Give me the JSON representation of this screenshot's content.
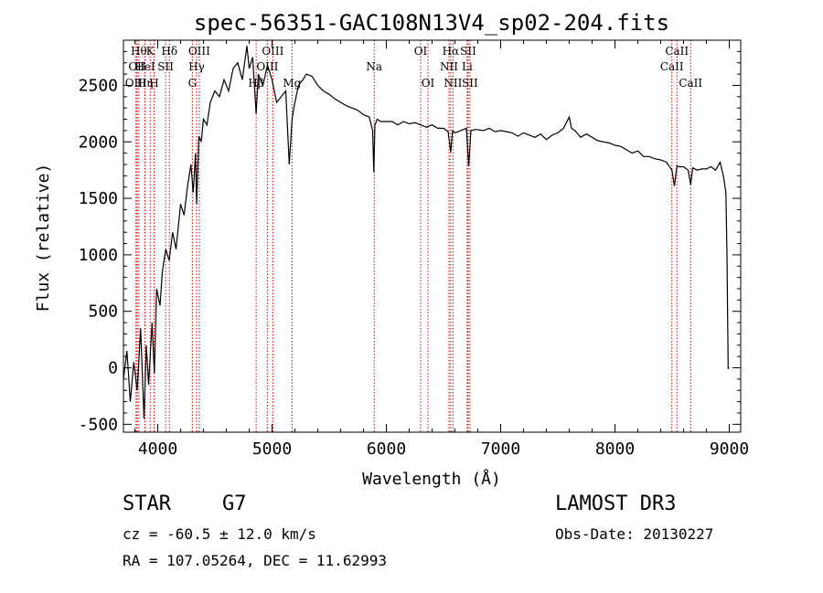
{
  "chart_data": {
    "type": "line",
    "title": "spec-56351-GAC108N13V4_sp02-204.fits",
    "xlabel": "Wavelength (Å)",
    "ylabel": "Flux (relative)",
    "xlim": [
      3700,
      9100
    ],
    "ylim": [
      -570,
      2900
    ],
    "xticks": [
      4000,
      5000,
      6000,
      7000,
      8000,
      9000
    ],
    "yticks": [
      -500,
      0,
      500,
      1000,
      1500,
      2000,
      2500
    ],
    "series": [
      {
        "name": "spectrum",
        "x": [
          3700,
          3730,
          3760,
          3790,
          3820,
          3850,
          3880,
          3900,
          3920,
          3950,
          3970,
          3990,
          4020,
          4040,
          4070,
          4100,
          4130,
          4160,
          4200,
          4230,
          4260,
          4290,
          4310,
          4330,
          4340,
          4360,
          4380,
          4400,
          4430,
          4460,
          4500,
          4540,
          4580,
          4620,
          4660,
          4700,
          4740,
          4780,
          4800,
          4830,
          4861,
          4880,
          4920,
          4960,
          5000,
          5040,
          5080,
          5120,
          5150,
          5175,
          5190,
          5230,
          5270,
          5300,
          5350,
          5400,
          5450,
          5500,
          5550,
          5600,
          5650,
          5700,
          5750,
          5800,
          5850,
          5880,
          5890,
          5900,
          5920,
          5950,
          6000,
          6050,
          6100,
          6150,
          6200,
          6250,
          6300,
          6350,
          6400,
          6450,
          6500,
          6540,
          6563,
          6580,
          6600,
          6650,
          6700,
          6720,
          6740,
          6780,
          6850,
          6900,
          6950,
          7000,
          7050,
          7100,
          7150,
          7200,
          7250,
          7300,
          7350,
          7400,
          7450,
          7500,
          7550,
          7600,
          7620,
          7650,
          7700,
          7750,
          7800,
          7850,
          7900,
          7950,
          8000,
          8050,
          8100,
          8150,
          8200,
          8250,
          8300,
          8350,
          8400,
          8450,
          8498,
          8520,
          8542,
          8560,
          8600,
          8640,
          8662,
          8680,
          8720,
          8760,
          8800,
          8840,
          8880,
          8920,
          8950,
          8970,
          8980,
          8990,
          9000
        ],
        "y": [
          -100,
          150,
          -300,
          50,
          -200,
          350,
          -450,
          200,
          -150,
          400,
          -50,
          700,
          550,
          850,
          1050,
          950,
          1200,
          1050,
          1450,
          1350,
          1600,
          1800,
          1550,
          1900,
          1450,
          2050,
          2000,
          2200,
          2150,
          2350,
          2450,
          2400,
          2550,
          2450,
          2650,
          2700,
          2550,
          2850,
          2650,
          2750,
          2250,
          2600,
          2500,
          2680,
          2550,
          2350,
          2400,
          2450,
          1800,
          2200,
          2300,
          2500,
          2550,
          2600,
          2580,
          2500,
          2450,
          2420,
          2380,
          2350,
          2320,
          2300,
          2280,
          2240,
          2220,
          2100,
          1730,
          2150,
          2200,
          2180,
          2180,
          2180,
          2150,
          2180,
          2160,
          2170,
          2150,
          2130,
          2150,
          2120,
          2120,
          2090,
          1910,
          2100,
          2080,
          2100,
          2120,
          1790,
          2100,
          2110,
          2100,
          2120,
          2090,
          2100,
          2090,
          2080,
          2050,
          2080,
          2060,
          2040,
          2070,
          2020,
          2060,
          2080,
          2120,
          2220,
          2120,
          2100,
          2040,
          2070,
          2040,
          2010,
          2000,
          1990,
          1970,
          1960,
          1930,
          1900,
          1920,
          1870,
          1870,
          1850,
          1840,
          1820,
          1750,
          1610,
          1790,
          1780,
          1780,
          1750,
          1620,
          1770,
          1750,
          1760,
          1760,
          1780,
          1750,
          1820,
          1690,
          1550,
          1000,
          -5,
          0
        ]
      }
    ],
    "line_markers": [
      {
        "wl": 3835,
        "labels": [
          "Hθ"
        ],
        "row": 0
      },
      {
        "wl": 3820,
        "labels": [
          "OII"
        ],
        "row": 1
      },
      {
        "wl": 3810,
        "labels": [
          "OIII"
        ],
        "row": 2
      },
      {
        "wl": 3889,
        "labels": [
          "Hη"
        ],
        "row": 2
      },
      {
        "wl": 3934,
        "labels": [
          "K"
        ],
        "row": 0
      },
      {
        "wl": 3888,
        "labels": [
          "HeI"
        ],
        "row": 1
      },
      {
        "wl": 3968,
        "labels": [
          "H"
        ],
        "row": 2
      },
      {
        "wl": 4069,
        "labels": [
          "SII"
        ],
        "row": 1
      },
      {
        "wl": 4102,
        "labels": [
          "Hδ"
        ],
        "row": 0
      },
      {
        "wl": 4303,
        "labels": [
          "G"
        ],
        "row": 2
      },
      {
        "wl": 4340,
        "labels": [
          "Hγ"
        ],
        "row": 1
      },
      {
        "wl": 4363,
        "labels": [
          "OIII"
        ],
        "row": 0
      },
      {
        "wl": 4861,
        "labels": [
          "Hβ"
        ],
        "row": 2
      },
      {
        "wl": 4959,
        "labels": [
          "OIII"
        ],
        "row": 1
      },
      {
        "wl": 5007,
        "labels": [
          "OIII"
        ],
        "row": 0
      },
      {
        "wl": 5175,
        "labels": [
          "Mg"
        ],
        "row": 2
      },
      {
        "wl": 5894,
        "labels": [
          "Na"
        ],
        "row": 1
      },
      {
        "wl": 6300,
        "labels": [
          "OI"
        ],
        "row": 0
      },
      {
        "wl": 6364,
        "labels": [
          "OI"
        ],
        "row": 2
      },
      {
        "wl": 6548,
        "labels": [
          "NII"
        ],
        "row": 1
      },
      {
        "wl": 6563,
        "labels": [
          "Hα"
        ],
        "row": 0
      },
      {
        "wl": 6583,
        "labels": [
          "NII"
        ],
        "row": 2
      },
      {
        "wl": 6707,
        "labels": [
          "Li"
        ],
        "row": 1
      },
      {
        "wl": 6716,
        "labels": [
          "SII"
        ],
        "row": 0
      },
      {
        "wl": 6731,
        "labels": [
          "SII"
        ],
        "row": 2
      },
      {
        "wl": 8498,
        "labels": [
          "CaII"
        ],
        "row": 1
      },
      {
        "wl": 8542,
        "labels": [
          "CaII"
        ],
        "row": 0
      },
      {
        "wl": 8662,
        "labels": [
          "CaII"
        ],
        "row": 2
      }
    ]
  },
  "info": {
    "object_class": "STAR",
    "subclass": "G7",
    "survey": "LAMOST DR3",
    "cz": "cz = -60.5 ± 12.0 km/s",
    "obs_date": "Obs-Date: 20130227",
    "coords": "RA = 107.05264, DEC =  11.62993"
  },
  "colors": {
    "line": "#000000",
    "marker": "#cc0000"
  }
}
